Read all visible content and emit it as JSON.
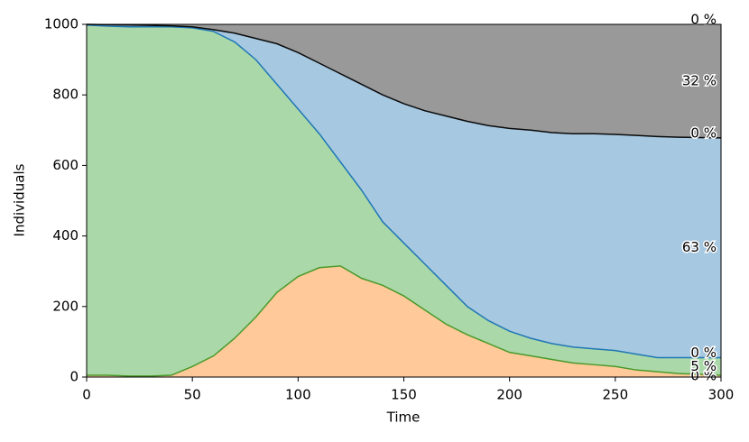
{
  "chart_data": {
    "type": "stacked_area",
    "xlabel": "Time",
    "ylabel": "Individuals",
    "x": [
      0,
      10,
      20,
      30,
      40,
      50,
      60,
      70,
      80,
      90,
      100,
      110,
      120,
      130,
      140,
      150,
      160,
      170,
      180,
      190,
      200,
      210,
      220,
      230,
      240,
      250,
      260,
      270,
      280,
      290,
      300
    ],
    "xlim": [
      0,
      300
    ],
    "xticks": [
      0,
      50,
      100,
      150,
      200,
      250,
      300
    ],
    "ylim": [
      0,
      1000
    ],
    "yticks": [
      0,
      200,
      400,
      600,
      800,
      1000
    ],
    "series": [
      {
        "color": "#ffc99a",
        "line_color": "#4a9a2a",
        "label_center": "0 %",
        "values": [
          5,
          5,
          3,
          3,
          5,
          30,
          60,
          110,
          170,
          240,
          285,
          310,
          315,
          280,
          260,
          230,
          190,
          150,
          120,
          95,
          70,
          60,
          50,
          40,
          35,
          30,
          20,
          15,
          10,
          8,
          5
        ]
      },
      {
        "color": "#abd8a9",
        "line_color": "#1f77b4",
        "label_center": "5 %",
        "label_top": "0 %",
        "values": [
          993,
          990,
          990,
          990,
          988,
          960,
          920,
          840,
          730,
          590,
          475,
          380,
          295,
          250,
          180,
          150,
          130,
          110,
          80,
          65,
          60,
          50,
          45,
          45,
          45,
          45,
          45,
          40,
          45,
          47,
          50
        ]
      },
      {
        "color": "#a6c8e1",
        "line_color": "#0a0a0a",
        "label_center": "63 %",
        "label_top": "0 %",
        "values": [
          2,
          4,
          5,
          4,
          3,
          3,
          5,
          25,
          60,
          115,
          160,
          200,
          250,
          300,
          360,
          395,
          435,
          480,
          525,
          553,
          575,
          590,
          598,
          605,
          610,
          613,
          620,
          627,
          625,
          624,
          623
        ]
      },
      {
        "color": "#999999",
        "label_center": "32 %",
        "label_top": "0 %",
        "values": [
          0,
          1,
          2,
          3,
          4,
          7,
          15,
          25,
          40,
          55,
          80,
          110,
          140,
          170,
          200,
          225,
          245,
          260,
          275,
          287,
          295,
          300,
          307,
          310,
          310,
          312,
          315,
          318,
          320,
          321,
          322
        ]
      }
    ]
  }
}
